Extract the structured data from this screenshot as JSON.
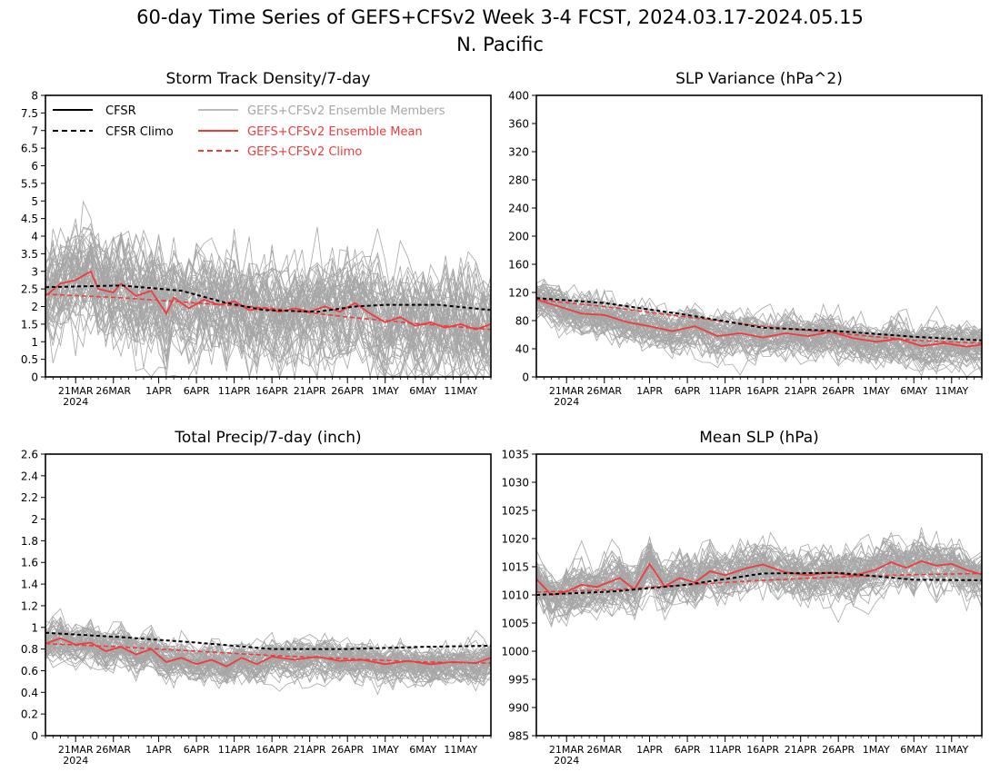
{
  "figure": {
    "title_line1": "60-day Time Series of GEFS+CFSv2 Week 3-4 FCST, 2024.03.17-2024.05.15",
    "title_line2": "N. Pacific",
    "colors": {
      "obs": "#000000",
      "members": "#a6a6a6",
      "ens_mean": "#ef3b3b",
      "ens_climo": "#ef3b3b"
    }
  },
  "legend": {
    "cfsr": "CFSR",
    "cfsr_climo": "CFSR Climo",
    "members": "GEFS+CFSv2 Ensemble Members",
    "ens_mean": "GEFS+CFSv2 Ensemble Mean",
    "ens_climo": "GEFS+CFSv2 Climo"
  },
  "x_axis": {
    "start_date": "2024-03-17",
    "end_date": "2024-05-15",
    "tick_dates": [
      "2024-03-21",
      "2024-03-26",
      "2024-04-01",
      "2024-04-06",
      "2024-04-11",
      "2024-04-16",
      "2024-04-21",
      "2024-04-26",
      "2024-05-01",
      "2024-05-06",
      "2024-05-11"
    ],
    "tick_labels": [
      "21MAR",
      "26MAR",
      "1APR",
      "6APR",
      "11APR",
      "16APR",
      "21APR",
      "26APR",
      "1MAY",
      "6MAY",
      "11MAY"
    ],
    "year_label": "2024"
  },
  "chart_data": [
    {
      "type": "line",
      "title": "Storm Track Density/7-day",
      "ylim": [
        0,
        8
      ],
      "yticks": [
        0,
        0.5,
        1,
        1.5,
        2,
        2.5,
        3,
        3.5,
        4,
        4.5,
        5,
        5.5,
        6,
        6.5,
        7,
        7.5,
        8
      ],
      "ytick_labels": [
        "0",
        "0.5",
        "1",
        "1.5",
        "2",
        "2.5",
        "3",
        "3.5",
        "4",
        "4.5",
        "5",
        "5.5",
        "6",
        "6.5",
        "7",
        "7.5",
        "8"
      ],
      "member_count": 60,
      "member_spread": 1.1,
      "cfsr_climo": [
        {
          "x": "2024-03-17",
          "y": 2.55
        },
        {
          "x": "2024-03-27",
          "y": 2.6
        },
        {
          "x": "2024-04-04",
          "y": 2.45
        },
        {
          "x": "2024-04-10",
          "y": 2.1
        },
        {
          "x": "2024-04-15",
          "y": 1.9
        },
        {
          "x": "2024-04-22",
          "y": 1.85
        },
        {
          "x": "2024-04-27",
          "y": 2.0
        },
        {
          "x": "2024-05-01",
          "y": 2.05
        },
        {
          "x": "2024-05-08",
          "y": 2.05
        },
        {
          "x": "2024-05-15",
          "y": 1.9
        }
      ],
      "ens_climo": [
        {
          "x": "2024-03-17",
          "y": 2.35
        },
        {
          "x": "2024-03-27",
          "y": 2.25
        },
        {
          "x": "2024-04-06",
          "y": 2.1
        },
        {
          "x": "2024-04-16",
          "y": 1.95
        },
        {
          "x": "2024-04-26",
          "y": 1.7
        },
        {
          "x": "2024-05-06",
          "y": 1.5
        },
        {
          "x": "2024-05-15",
          "y": 1.35
        }
      ],
      "ens_mean": [
        {
          "x": "2024-03-17",
          "y": 2.3
        },
        {
          "x": "2024-03-19",
          "y": 2.65
        },
        {
          "x": "2024-03-21",
          "y": 2.75
        },
        {
          "x": "2024-03-23",
          "y": 3.0
        },
        {
          "x": "2024-03-24",
          "y": 2.5
        },
        {
          "x": "2024-03-26",
          "y": 2.4
        },
        {
          "x": "2024-03-27",
          "y": 2.65
        },
        {
          "x": "2024-03-29",
          "y": 2.3
        },
        {
          "x": "2024-03-31",
          "y": 2.45
        },
        {
          "x": "2024-04-02",
          "y": 1.8
        },
        {
          "x": "2024-04-03",
          "y": 2.25
        },
        {
          "x": "2024-04-05",
          "y": 1.95
        },
        {
          "x": "2024-04-07",
          "y": 2.2
        },
        {
          "x": "2024-04-09",
          "y": 2.05
        },
        {
          "x": "2024-04-11",
          "y": 2.15
        },
        {
          "x": "2024-04-13",
          "y": 1.9
        },
        {
          "x": "2024-04-15",
          "y": 1.95
        },
        {
          "x": "2024-04-17",
          "y": 1.85
        },
        {
          "x": "2024-04-19",
          "y": 1.95
        },
        {
          "x": "2024-04-21",
          "y": 1.85
        },
        {
          "x": "2024-04-23",
          "y": 2.0
        },
        {
          "x": "2024-04-25",
          "y": 1.85
        },
        {
          "x": "2024-04-27",
          "y": 2.1
        },
        {
          "x": "2024-04-29",
          "y": 1.8
        },
        {
          "x": "2024-05-01",
          "y": 1.55
        },
        {
          "x": "2024-05-03",
          "y": 1.7
        },
        {
          "x": "2024-05-05",
          "y": 1.45
        },
        {
          "x": "2024-05-07",
          "y": 1.55
        },
        {
          "x": "2024-05-09",
          "y": 1.4
        },
        {
          "x": "2024-05-11",
          "y": 1.5
        },
        {
          "x": "2024-05-13",
          "y": 1.35
        },
        {
          "x": "2024-05-15",
          "y": 1.5
        }
      ]
    },
    {
      "type": "line",
      "title": "SLP Variance (hPa^2)",
      "ylim": [
        0,
        400
      ],
      "yticks": [
        0,
        40,
        80,
        120,
        160,
        200,
        240,
        280,
        320,
        360,
        400
      ],
      "ytick_labels": [
        "0",
        "40",
        "80",
        "120",
        "160",
        "200",
        "240",
        "280",
        "320",
        "360",
        "400"
      ],
      "member_count": 60,
      "member_spread": 22,
      "cfsr_climo": [
        {
          "x": "2024-03-17",
          "y": 112
        },
        {
          "x": "2024-03-26",
          "y": 105
        },
        {
          "x": "2024-04-06",
          "y": 88
        },
        {
          "x": "2024-04-16",
          "y": 70
        },
        {
          "x": "2024-04-26",
          "y": 65
        },
        {
          "x": "2024-05-06",
          "y": 57
        },
        {
          "x": "2024-05-15",
          "y": 52
        }
      ],
      "ens_climo": [
        {
          "x": "2024-03-17",
          "y": 110
        },
        {
          "x": "2024-03-26",
          "y": 100
        },
        {
          "x": "2024-04-06",
          "y": 85
        },
        {
          "x": "2024-04-16",
          "y": 72
        },
        {
          "x": "2024-04-26",
          "y": 62
        },
        {
          "x": "2024-05-06",
          "y": 52
        },
        {
          "x": "2024-05-15",
          "y": 48
        }
      ],
      "ens_mean": [
        {
          "x": "2024-03-17",
          "y": 110
        },
        {
          "x": "2024-03-20",
          "y": 100
        },
        {
          "x": "2024-03-23",
          "y": 90
        },
        {
          "x": "2024-03-26",
          "y": 88
        },
        {
          "x": "2024-03-29",
          "y": 78
        },
        {
          "x": "2024-04-01",
          "y": 72
        },
        {
          "x": "2024-04-04",
          "y": 65
        },
        {
          "x": "2024-04-07",
          "y": 72
        },
        {
          "x": "2024-04-10",
          "y": 58
        },
        {
          "x": "2024-04-13",
          "y": 62
        },
        {
          "x": "2024-04-16",
          "y": 56
        },
        {
          "x": "2024-04-19",
          "y": 62
        },
        {
          "x": "2024-04-22",
          "y": 58
        },
        {
          "x": "2024-04-25",
          "y": 64
        },
        {
          "x": "2024-04-28",
          "y": 55
        },
        {
          "x": "2024-05-01",
          "y": 50
        },
        {
          "x": "2024-05-04",
          "y": 54
        },
        {
          "x": "2024-05-07",
          "y": 44
        },
        {
          "x": "2024-05-10",
          "y": 48
        },
        {
          "x": "2024-05-13",
          "y": 43
        },
        {
          "x": "2024-05-15",
          "y": 46
        }
      ]
    },
    {
      "type": "line",
      "title": "Total Precip/7-day (inch)",
      "ylim": [
        0,
        2.6
      ],
      "yticks": [
        0,
        0.2,
        0.4,
        0.6,
        0.8,
        1,
        1.2,
        1.4,
        1.6,
        1.8,
        2,
        2.2,
        2.4,
        2.6
      ],
      "ytick_labels": [
        "0",
        "0.2",
        "0.4",
        "0.6",
        "0.8",
        "1",
        "1.2",
        "1.4",
        "1.6",
        "1.8",
        "2",
        "2.2",
        "2.4",
        "2.6"
      ],
      "member_count": 60,
      "member_spread": 0.13,
      "cfsr_climo": [
        {
          "x": "2024-03-17",
          "y": 0.95
        },
        {
          "x": "2024-03-27",
          "y": 0.91
        },
        {
          "x": "2024-04-06",
          "y": 0.86
        },
        {
          "x": "2024-04-16",
          "y": 0.8
        },
        {
          "x": "2024-04-26",
          "y": 0.8
        },
        {
          "x": "2024-05-06",
          "y": 0.82
        },
        {
          "x": "2024-05-15",
          "y": 0.83
        }
      ],
      "ens_climo": [
        {
          "x": "2024-03-17",
          "y": 0.85
        },
        {
          "x": "2024-03-27",
          "y": 0.82
        },
        {
          "x": "2024-04-06",
          "y": 0.78
        },
        {
          "x": "2024-04-16",
          "y": 0.74
        },
        {
          "x": "2024-04-26",
          "y": 0.71
        },
        {
          "x": "2024-05-06",
          "y": 0.68
        },
        {
          "x": "2024-05-15",
          "y": 0.67
        }
      ],
      "ens_mean": [
        {
          "x": "2024-03-17",
          "y": 0.85
        },
        {
          "x": "2024-03-19",
          "y": 0.9
        },
        {
          "x": "2024-03-21",
          "y": 0.84
        },
        {
          "x": "2024-03-23",
          "y": 0.86
        },
        {
          "x": "2024-03-25",
          "y": 0.78
        },
        {
          "x": "2024-03-27",
          "y": 0.82
        },
        {
          "x": "2024-03-29",
          "y": 0.75
        },
        {
          "x": "2024-03-31",
          "y": 0.8
        },
        {
          "x": "2024-04-02",
          "y": 0.68
        },
        {
          "x": "2024-04-04",
          "y": 0.72
        },
        {
          "x": "2024-04-06",
          "y": 0.66
        },
        {
          "x": "2024-04-08",
          "y": 0.7
        },
        {
          "x": "2024-04-10",
          "y": 0.64
        },
        {
          "x": "2024-04-12",
          "y": 0.72
        },
        {
          "x": "2024-04-14",
          "y": 0.66
        },
        {
          "x": "2024-04-16",
          "y": 0.73
        },
        {
          "x": "2024-04-19",
          "y": 0.7
        },
        {
          "x": "2024-04-22",
          "y": 0.73
        },
        {
          "x": "2024-04-25",
          "y": 0.69
        },
        {
          "x": "2024-04-28",
          "y": 0.7
        },
        {
          "x": "2024-05-01",
          "y": 0.66
        },
        {
          "x": "2024-05-04",
          "y": 0.69
        },
        {
          "x": "2024-05-07",
          "y": 0.66
        },
        {
          "x": "2024-05-10",
          "y": 0.68
        },
        {
          "x": "2024-05-13",
          "y": 0.67
        },
        {
          "x": "2024-05-15",
          "y": 0.72
        }
      ]
    },
    {
      "type": "line",
      "title": "Mean SLP (hPa)",
      "ylim": [
        985,
        1035
      ],
      "yticks": [
        985,
        990,
        995,
        1000,
        1005,
        1010,
        1015,
        1020,
        1025,
        1030,
        1035
      ],
      "ytick_labels": [
        "985",
        "990",
        "995",
        "1000",
        "1005",
        "1010",
        "1015",
        "1020",
        "1025",
        "1030",
        "1035"
      ],
      "member_count": 60,
      "member_spread": 3.2,
      "cfsr_climo": [
        {
          "x": "2024-03-17",
          "y": 1010.0
        },
        {
          "x": "2024-03-27",
          "y": 1010.6
        },
        {
          "x": "2024-04-06",
          "y": 1011.8
        },
        {
          "x": "2024-04-16",
          "y": 1013.8
        },
        {
          "x": "2024-04-26",
          "y": 1013.9
        },
        {
          "x": "2024-05-06",
          "y": 1012.7
        },
        {
          "x": "2024-05-15",
          "y": 1012.6
        }
      ],
      "ens_climo": [
        {
          "x": "2024-03-17",
          "y": 1010.5
        },
        {
          "x": "2024-03-27",
          "y": 1010.9
        },
        {
          "x": "2024-04-06",
          "y": 1011.8
        },
        {
          "x": "2024-04-16",
          "y": 1012.6
        },
        {
          "x": "2024-04-26",
          "y": 1013.2
        },
        {
          "x": "2024-05-06",
          "y": 1013.6
        },
        {
          "x": "2024-05-15",
          "y": 1013.8
        }
      ],
      "ens_mean": [
        {
          "x": "2024-03-17",
          "y": 1012.8
        },
        {
          "x": "2024-03-19",
          "y": 1010.0
        },
        {
          "x": "2024-03-21",
          "y": 1010.6
        },
        {
          "x": "2024-03-23",
          "y": 1011.8
        },
        {
          "x": "2024-03-25",
          "y": 1011.4
        },
        {
          "x": "2024-03-28",
          "y": 1013.0
        },
        {
          "x": "2024-03-30",
          "y": 1011.0
        },
        {
          "x": "2024-04-01",
          "y": 1015.5
        },
        {
          "x": "2024-04-03",
          "y": 1011.5
        },
        {
          "x": "2024-04-05",
          "y": 1013.0
        },
        {
          "x": "2024-04-07",
          "y": 1012.2
        },
        {
          "x": "2024-04-09",
          "y": 1014.2
        },
        {
          "x": "2024-04-11",
          "y": 1013.5
        },
        {
          "x": "2024-04-14",
          "y": 1014.8
        },
        {
          "x": "2024-04-16",
          "y": 1015.4
        },
        {
          "x": "2024-04-19",
          "y": 1014.0
        },
        {
          "x": "2024-04-22",
          "y": 1013.5
        },
        {
          "x": "2024-04-25",
          "y": 1014.0
        },
        {
          "x": "2024-04-28",
          "y": 1013.4
        },
        {
          "x": "2024-05-01",
          "y": 1014.5
        },
        {
          "x": "2024-05-03",
          "y": 1015.8
        },
        {
          "x": "2024-05-05",
          "y": 1014.8
        },
        {
          "x": "2024-05-07",
          "y": 1016.0
        },
        {
          "x": "2024-05-09",
          "y": 1015.2
        },
        {
          "x": "2024-05-11",
          "y": 1015.5
        },
        {
          "x": "2024-05-13",
          "y": 1014.4
        },
        {
          "x": "2024-05-15",
          "y": 1013.6
        }
      ]
    }
  ]
}
